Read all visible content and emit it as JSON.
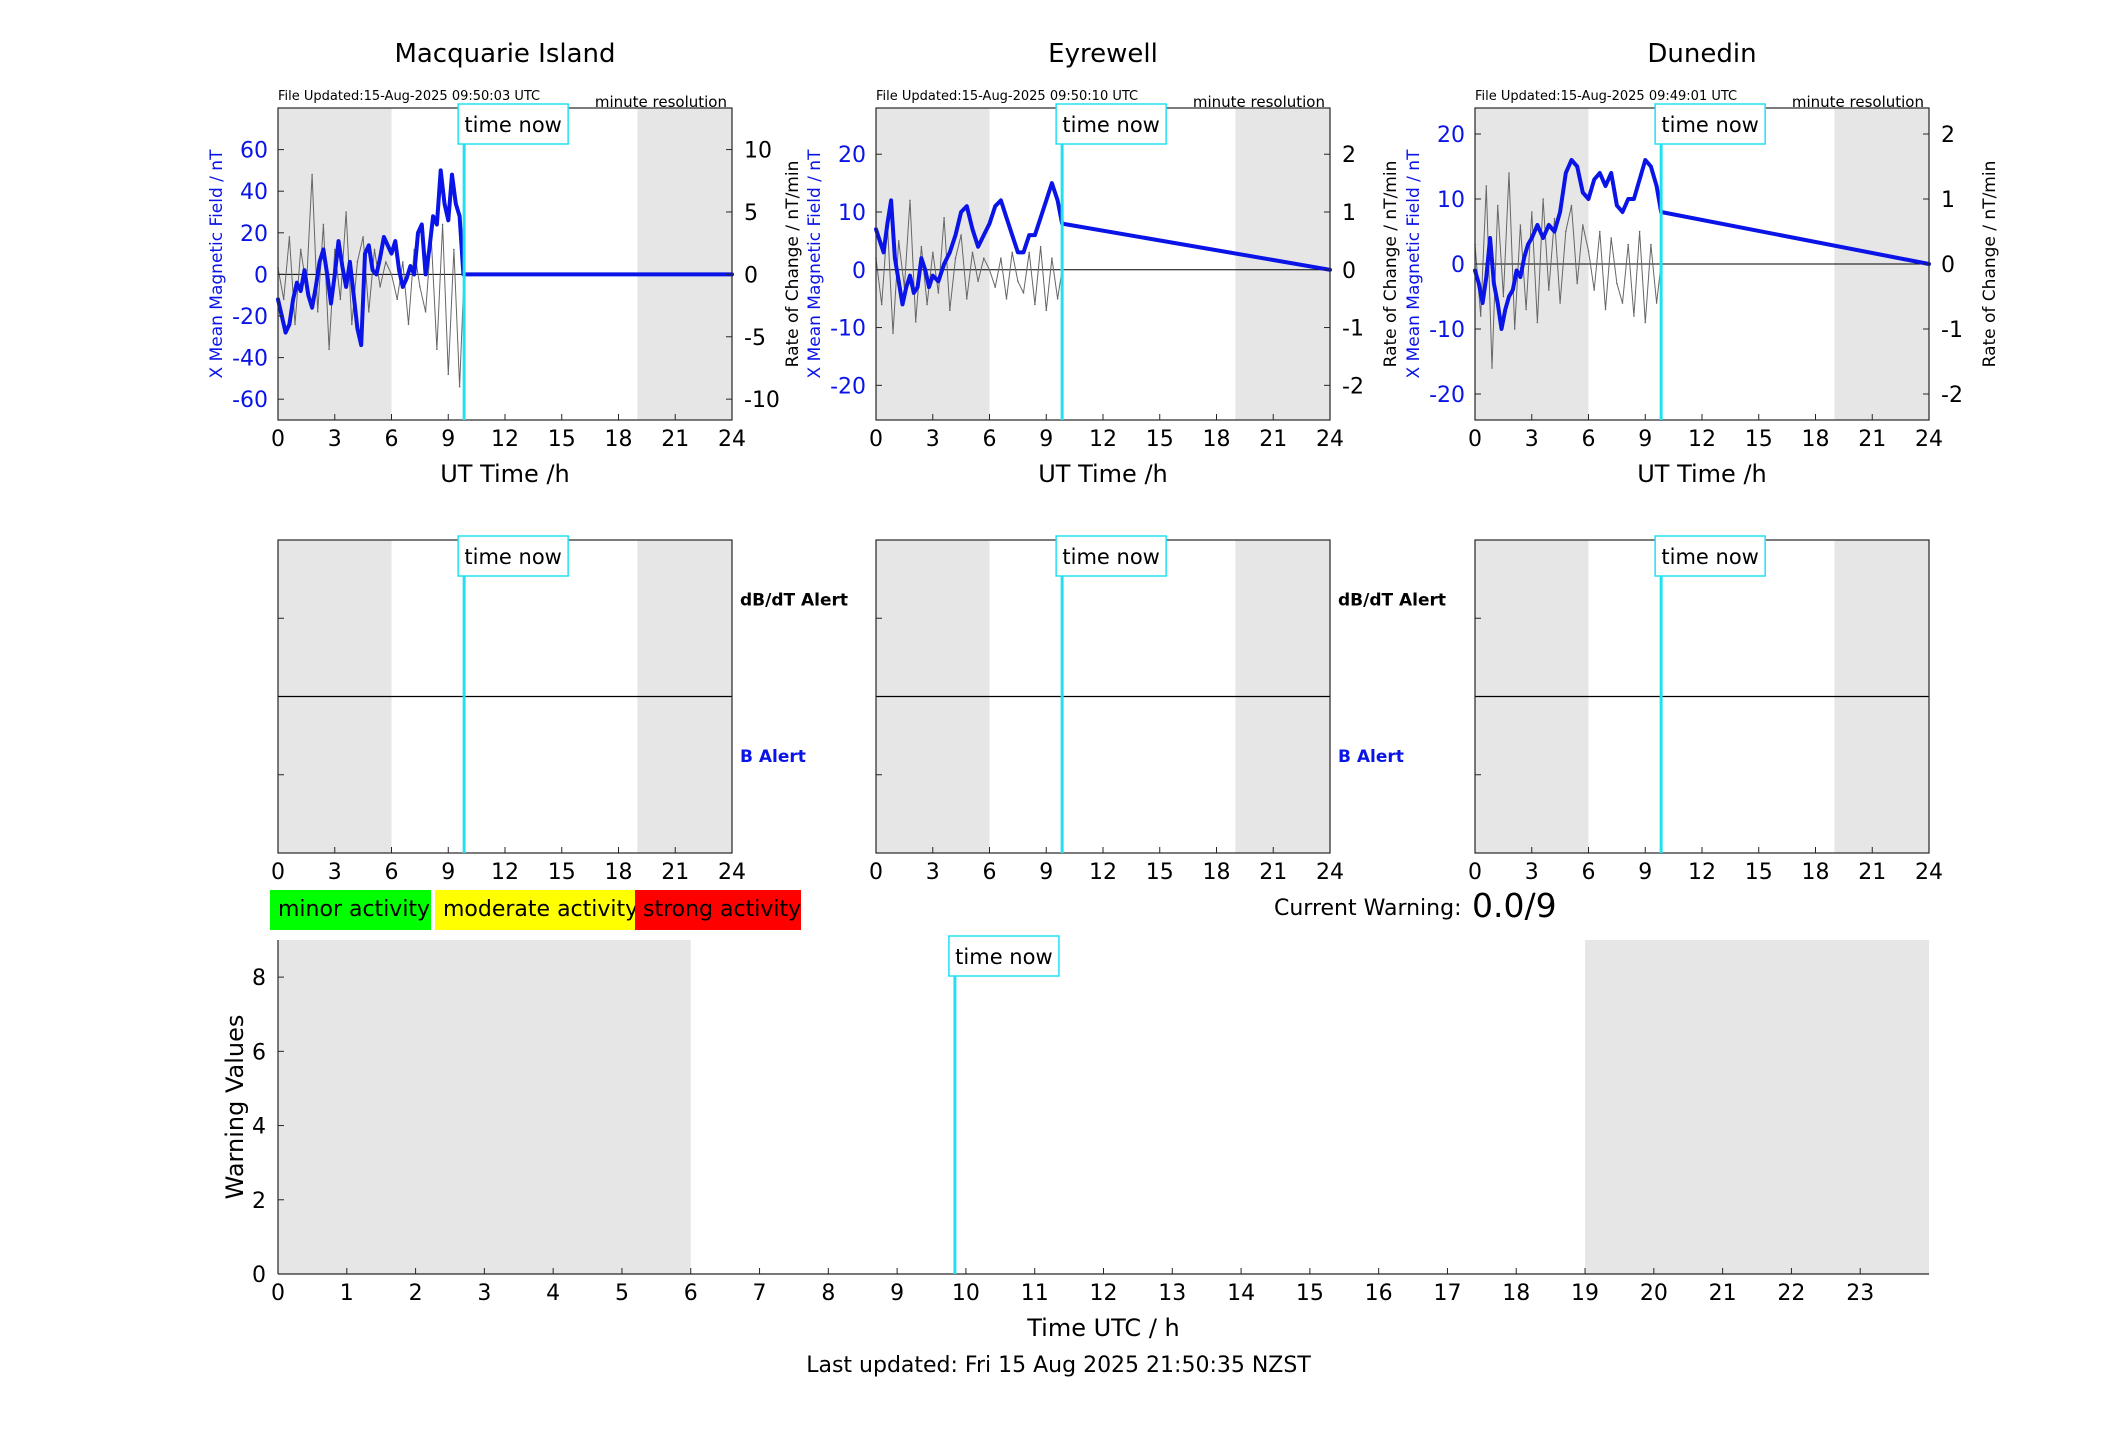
{
  "colors": {
    "field": "#0a14e6",
    "rate": "#666666",
    "now_line": "#22e0f0",
    "night_shade": "#e6e6e6",
    "minor": "#00ff00",
    "moderate": "#ffff00",
    "strong": "#ff0000"
  },
  "top_panels": [
    {
      "station": "Macquarie Island",
      "file_updated": "File Updated:15-Aug-2025 09:50:03 UTC",
      "resolution": "minute resolution",
      "ylabel_left": "X Mean Magnetic Field / nT",
      "ylabel_right": "Rate of Change / nT/min",
      "xlabel": "UT Time /h",
      "now_label": "time now"
    },
    {
      "station": "Eyrewell",
      "file_updated": "File Updated:15-Aug-2025 09:50:10 UTC",
      "resolution": "minute resolution",
      "ylabel_left": "X Mean Magnetic Field / nT",
      "ylabel_right": "Rate of Change / nT/min",
      "xlabel": "UT Time /h",
      "now_label": "time now"
    },
    {
      "station": "Dunedin",
      "file_updated": "File Updated:15-Aug-2025 09:49:01 UTC",
      "resolution": "minute resolution",
      "ylabel_left": "X Mean Magnetic Field / nT",
      "ylabel_right": "Rate of Change / nT/min",
      "xlabel": "UT Time /h",
      "now_label": "time now"
    }
  ],
  "alert_panels": {
    "dbdt_label": "dB/dT Alert",
    "b_label": "B Alert",
    "now_label": "time now"
  },
  "legend": {
    "minor": "minor activity",
    "moderate": "moderate activity",
    "strong": "strong activity"
  },
  "current_warning": {
    "label": "Current Warning:",
    "value": "0.0/9"
  },
  "last_updated": "Last updated: Fri 15 Aug 2025 21:50:35 NZST",
  "chart_data": [
    {
      "type": "line",
      "title": "Macquarie Island",
      "xlabel": "UT Time /h",
      "ylabel": "X Mean Magnetic Field / nT",
      "ylabel_right": "Rate of Change / nT/min",
      "xlim": [
        0,
        24
      ],
      "ylim": [
        -70,
        80
      ],
      "ylim_right": [
        -11.67,
        13.33
      ],
      "xticks": [
        0,
        3,
        6,
        9,
        12,
        15,
        18,
        21,
        24
      ],
      "yticks": [
        -60,
        -40,
        -20,
        0,
        20,
        40,
        60
      ],
      "yticks_right": [
        -10,
        -5,
        0,
        5,
        10
      ],
      "night_shading": [
        [
          0,
          6
        ],
        [
          19,
          24
        ]
      ],
      "time_now": 9.84,
      "series": [
        {
          "axis": "left",
          "x": [
            0,
            0.2,
            0.4,
            0.6,
            0.8,
            1.0,
            1.2,
            1.4,
            1.6,
            1.8,
            2.0,
            2.2,
            2.4,
            2.6,
            2.8,
            3.0,
            3.2,
            3.4,
            3.6,
            3.8,
            4.0,
            4.2,
            4.4,
            4.6,
            4.8,
            5.0,
            5.2,
            5.4,
            5.6,
            5.8,
            6.0,
            6.2,
            6.4,
            6.6,
            6.8,
            7.0,
            7.2,
            7.4,
            7.6,
            7.8,
            8.0,
            8.2,
            8.4,
            8.6,
            8.8,
            9.0,
            9.2,
            9.4,
            9.6,
            9.8,
            9.84,
            24
          ],
          "y": [
            -12,
            -20,
            -28,
            -24,
            -12,
            -4,
            -8,
            2,
            -10,
            -16,
            -6,
            6,
            12,
            0,
            -14,
            0,
            16,
            4,
            -6,
            6,
            -10,
            -26,
            -34,
            10,
            14,
            2,
            0,
            8,
            18,
            14,
            10,
            16,
            2,
            -6,
            -2,
            4,
            0,
            20,
            24,
            0,
            12,
            28,
            24,
            50,
            34,
            26,
            48,
            34,
            28,
            0,
            0,
            0
          ]
        },
        {
          "axis": "right",
          "x": [
            0,
            0.3,
            0.6,
            0.9,
            1.2,
            1.5,
            1.8,
            2.1,
            2.4,
            2.7,
            3.0,
            3.3,
            3.6,
            3.9,
            4.2,
            4.5,
            4.8,
            5.1,
            5.4,
            5.7,
            6.0,
            6.3,
            6.6,
            6.9,
            7.2,
            7.5,
            7.8,
            8.1,
            8.4,
            8.7,
            9.0,
            9.3,
            9.6,
            9.84
          ],
          "y": [
            0.5,
            -2,
            3,
            -4,
            2,
            -1,
            8,
            -3,
            4,
            -6,
            2,
            -2,
            5,
            -4,
            1,
            3,
            -3,
            2,
            -1,
            1,
            0,
            -2,
            1,
            -4,
            2,
            -1,
            -3,
            3,
            -6,
            4,
            -8,
            2,
            -9,
            0
          ]
        }
      ]
    },
    {
      "type": "line",
      "title": "Eyrewell",
      "xlabel": "UT Time /h",
      "ylabel": "X Mean Magnetic Field / nT",
      "ylabel_right": "Rate of Change / nT/min",
      "xlim": [
        0,
        24
      ],
      "ylim": [
        -26,
        28
      ],
      "ylim_right": [
        -2.6,
        2.8
      ],
      "xticks": [
        0,
        3,
        6,
        9,
        12,
        15,
        18,
        21,
        24
      ],
      "yticks": [
        -20,
        -10,
        0,
        10,
        20
      ],
      "yticks_right": [
        -2,
        -1,
        0,
        1,
        2
      ],
      "night_shading": [
        [
          0,
          6
        ],
        [
          19,
          24
        ]
      ],
      "time_now": 9.84,
      "series": [
        {
          "axis": "left",
          "x": [
            0,
            0.2,
            0.4,
            0.6,
            0.8,
            1.0,
            1.2,
            1.4,
            1.6,
            1.8,
            2.0,
            2.2,
            2.4,
            2.6,
            2.8,
            3.0,
            3.3,
            3.6,
            3.9,
            4.2,
            4.5,
            4.8,
            5.1,
            5.4,
            5.7,
            6.0,
            6.3,
            6.6,
            6.9,
            7.2,
            7.5,
            7.8,
            8.1,
            8.4,
            8.7,
            9.0,
            9.3,
            9.6,
            9.84,
            24
          ],
          "y": [
            7,
            5,
            3,
            8,
            12,
            2,
            -2,
            -6,
            -3,
            -1,
            -4,
            -3,
            2,
            0,
            -3,
            -1,
            -2,
            1,
            3,
            6,
            10,
            11,
            7,
            4,
            6,
            8,
            11,
            12,
            9,
            6,
            3,
            3,
            6,
            6,
            9,
            12,
            15,
            12,
            8,
            0
          ]
        },
        {
          "axis": "right",
          "x": [
            0,
            0.3,
            0.6,
            0.9,
            1.2,
            1.5,
            1.8,
            2.1,
            2.4,
            2.7,
            3.0,
            3.3,
            3.6,
            3.9,
            4.2,
            4.5,
            4.8,
            5.1,
            5.4,
            5.7,
            6.0,
            6.3,
            6.6,
            6.9,
            7.2,
            7.5,
            7.8,
            8.1,
            8.4,
            8.7,
            9.0,
            9.3,
            9.6,
            9.84
          ],
          "y": [
            0.2,
            -0.6,
            0.8,
            -1.1,
            0.5,
            -0.3,
            1.2,
            -0.9,
            0.4,
            -0.6,
            0.3,
            -0.4,
            0.9,
            -0.7,
            0.2,
            0.6,
            -0.5,
            0.3,
            -0.2,
            0.2,
            0.0,
            -0.3,
            0.2,
            -0.5,
            0.3,
            -0.2,
            -0.4,
            0.3,
            -0.6,
            0.4,
            -0.7,
            0.2,
            -0.5,
            0.0
          ]
        }
      ]
    },
    {
      "type": "line",
      "title": "Dunedin",
      "xlabel": "UT Time /h",
      "ylabel": "X Mean Magnetic Field / nT",
      "ylabel_right": "Rate of Change / nT/min",
      "xlim": [
        0,
        24
      ],
      "ylim": [
        -24,
        24
      ],
      "ylim_right": [
        -2.4,
        2.4
      ],
      "xticks": [
        0,
        3,
        6,
        9,
        12,
        15,
        18,
        21,
        24
      ],
      "yticks": [
        -20,
        -10,
        0,
        10,
        20
      ],
      "yticks_right": [
        -2,
        -1,
        0,
        1,
        2
      ],
      "night_shading": [
        [
          0,
          6
        ],
        [
          19,
          24
        ]
      ],
      "time_now": 9.84,
      "series": [
        {
          "axis": "left",
          "x": [
            0,
            0.2,
            0.4,
            0.6,
            0.8,
            1.0,
            1.2,
            1.4,
            1.6,
            1.8,
            2.0,
            2.2,
            2.4,
            2.6,
            2.8,
            3.0,
            3.3,
            3.6,
            3.9,
            4.2,
            4.5,
            4.8,
            5.1,
            5.4,
            5.7,
            6.0,
            6.3,
            6.6,
            6.9,
            7.2,
            7.5,
            7.8,
            8.1,
            8.4,
            8.7,
            9.0,
            9.3,
            9.6,
            9.84,
            24
          ],
          "y": [
            -1,
            -3,
            -6,
            -2,
            4,
            -3,
            -6,
            -10,
            -7,
            -5,
            -4,
            -1,
            -2,
            1,
            3,
            4,
            6,
            4,
            6,
            5,
            8,
            14,
            16,
            15,
            11,
            10,
            13,
            14,
            12,
            14,
            9,
            8,
            10,
            10,
            13,
            16,
            15,
            12,
            8,
            0
          ]
        },
        {
          "axis": "right",
          "x": [
            0,
            0.3,
            0.6,
            0.9,
            1.2,
            1.5,
            1.8,
            2.1,
            2.4,
            2.7,
            3.0,
            3.3,
            3.6,
            3.9,
            4.2,
            4.5,
            4.8,
            5.1,
            5.4,
            5.7,
            6.0,
            6.3,
            6.6,
            6.9,
            7.2,
            7.5,
            7.8,
            8.1,
            8.4,
            8.7,
            9.0,
            9.3,
            9.6,
            9.84
          ],
          "y": [
            0.3,
            -0.8,
            1.2,
            -1.6,
            0.9,
            -0.5,
            1.4,
            -1.0,
            0.6,
            -0.7,
            0.8,
            -0.9,
            1.0,
            -0.4,
            0.7,
            -0.6,
            0.5,
            0.9,
            -0.3,
            0.6,
            0.2,
            -0.4,
            0.5,
            -0.7,
            0.4,
            -0.3,
            -0.6,
            0.3,
            -0.8,
            0.5,
            -0.9,
            0.3,
            -0.6,
            0.0
          ]
        }
      ]
    },
    {
      "type": "line",
      "title": "",
      "xlabel": "Time UTC / h",
      "ylabel": "Warning Values",
      "xlim": [
        0,
        24
      ],
      "ylim": [
        0,
        9
      ],
      "xticks": [
        0,
        1,
        2,
        3,
        4,
        5,
        6,
        7,
        8,
        9,
        10,
        11,
        12,
        13,
        14,
        15,
        16,
        17,
        18,
        19,
        20,
        21,
        22,
        23
      ],
      "yticks": [
        0,
        2,
        4,
        6,
        8
      ],
      "night_shading": [
        [
          0,
          6
        ],
        [
          19,
          24
        ]
      ],
      "time_now": 9.84,
      "now_label": "time now",
      "series": []
    }
  ]
}
